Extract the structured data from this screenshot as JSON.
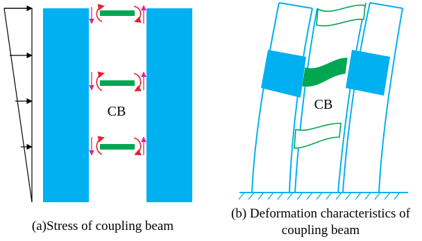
{
  "colors": {
    "wall": "#00B0F0",
    "beam": "#00A651",
    "shear_arrow": "#E91E8C",
    "moment_arrow": "#E8202A",
    "line": "#000000"
  },
  "panel_a": {
    "beam_label": "CB",
    "caption": "(a)Stress of coupling beam"
  },
  "panel_b": {
    "beam_label": "CB",
    "caption_line1": "(b) Deformation characteristics of",
    "caption_line2": "coupling beam"
  }
}
